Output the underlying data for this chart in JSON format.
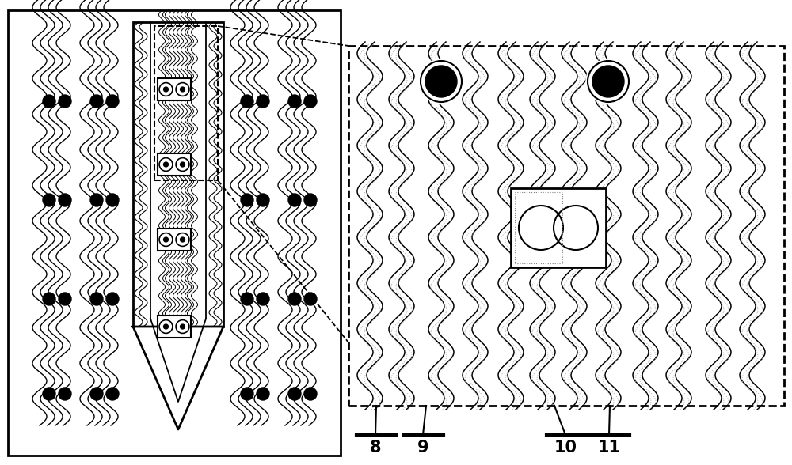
{
  "fig_width": 10.0,
  "fig_height": 5.88,
  "bg_color": "#ffffff",
  "labels": [
    "8",
    "9",
    "10",
    "11"
  ]
}
